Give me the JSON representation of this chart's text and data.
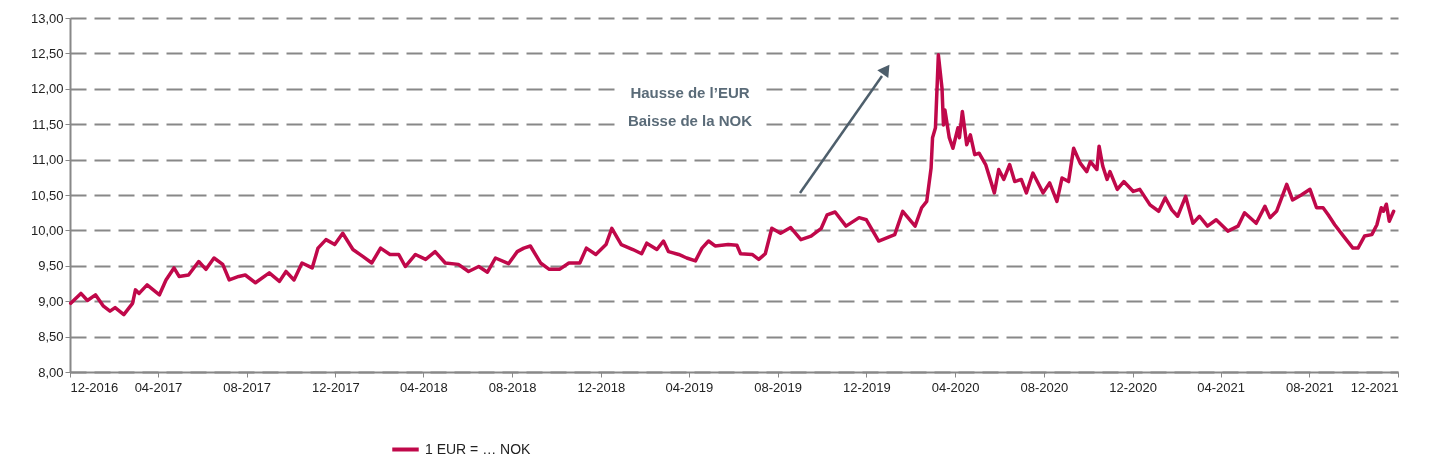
{
  "chart_data": {
    "type": "line",
    "annotations": [
      "Hausse de l’EUR\nBaisse de la NOK"
    ],
    "xlim": [
      "2016-12-01",
      "2021-12-01"
    ],
    "xticks": [
      {
        "value": "2016-12-01",
        "label": "12-2016"
      },
      {
        "value": "2017-04-01",
        "label": "04-2017"
      },
      {
        "value": "2017-08-01",
        "label": "08-2017"
      },
      {
        "value": "2017-12-01",
        "label": "12-2017"
      },
      {
        "value": "2018-04-01",
        "label": "04-2018"
      },
      {
        "value": "2018-08-01",
        "label": "08-2018"
      },
      {
        "value": "2018-12-01",
        "label": "12-2018"
      },
      {
        "value": "2019-04-01",
        "label": "04-2019"
      },
      {
        "value": "2019-08-01",
        "label": "08-2019"
      },
      {
        "value": "2019-12-01",
        "label": "12-2019"
      },
      {
        "value": "2020-04-01",
        "label": "04-2020"
      },
      {
        "value": "2020-08-01",
        "label": "08-2020"
      },
      {
        "value": "2020-12-01",
        "label": "12-2020"
      },
      {
        "value": "2021-04-01",
        "label": "04-2021"
      },
      {
        "value": "2021-08-01",
        "label": "08-2021"
      },
      {
        "value": "2021-12-01",
        "label": "12-2021"
      }
    ],
    "ylim": [
      8,
      13
    ],
    "yticks": [
      {
        "value": 8,
        "label": "8,00"
      },
      {
        "value": 8.5,
        "label": "8,50"
      },
      {
        "value": 9,
        "label": "9,00"
      },
      {
        "value": 9.5,
        "label": "9,50"
      },
      {
        "value": 10,
        "label": "10,00"
      },
      {
        "value": 10.5,
        "label": "10,50"
      },
      {
        "value": 11,
        "label": "11,00"
      },
      {
        "value": 11.5,
        "label": "11,50"
      },
      {
        "value": 12,
        "label": "12,00"
      },
      {
        "value": 12.5,
        "label": "12,50"
      },
      {
        "value": 13,
        "label": "13,00"
      }
    ],
    "grid": "y",
    "legend": "bottom",
    "marker": "none",
    "line_style": "solid",
    "series": [
      {
        "name": "1 EUR = … NOK",
        "color": "#c0084a",
        "x": [
          "2016-12-02",
          "2016-12-16",
          "2016-12-25",
          "2017-01-05",
          "2017-01-16",
          "2017-01-25",
          "2017-02-01",
          "2017-02-13",
          "2017-02-25",
          "2017-03-01",
          "2017-03-06",
          "2017-03-17",
          "2017-04-03",
          "2017-04-12",
          "2017-04-23",
          "2017-04-30",
          "2017-05-13",
          "2017-05-27",
          "2017-06-06",
          "2017-06-17",
          "2017-06-29",
          "2017-07-08",
          "2017-07-21",
          "2017-07-30",
          "2017-08-13",
          "2017-09-01",
          "2017-09-15",
          "2017-09-24",
          "2017-10-05",
          "2017-10-16",
          "2017-10-30",
          "2017-11-07",
          "2017-11-18",
          "2017-11-30",
          "2017-12-11",
          "2017-12-25",
          "2018-01-08",
          "2018-01-20",
          "2018-02-01",
          "2018-02-14",
          "2018-02-26",
          "2018-03-07",
          "2018-03-21",
          "2018-04-04",
          "2018-04-17",
          "2018-05-01",
          "2018-05-19",
          "2018-06-02",
          "2018-06-16",
          "2018-06-28",
          "2018-07-09",
          "2018-07-27",
          "2018-08-08",
          "2018-08-17",
          "2018-08-26",
          "2018-09-09",
          "2018-09-21",
          "2018-10-05",
          "2018-10-18",
          "2018-11-02",
          "2018-11-11",
          "2018-11-24",
          "2018-12-08",
          "2018-12-16",
          "2018-12-29",
          "2019-01-14",
          "2019-01-26",
          "2019-02-02",
          "2019-02-16",
          "2019-02-25",
          "2019-03-04",
          "2019-03-18",
          "2019-03-29",
          "2019-04-10",
          "2019-04-19",
          "2019-04-28",
          "2019-05-07",
          "2019-05-25",
          "2019-06-06",
          "2019-06-11",
          "2019-06-27",
          "2019-07-06",
          "2019-07-15",
          "2019-07-24",
          "2019-08-05",
          "2019-08-19",
          "2019-09-02",
          "2019-09-16",
          "2019-09-30",
          "2019-10-08",
          "2019-10-19",
          "2019-11-03",
          "2019-11-21",
          "2019-12-01",
          "2019-12-18",
          "2020-01-09",
          "2020-01-20",
          "2020-02-06",
          "2020-02-15",
          "2020-02-22",
          "2020-02-28",
          "2020-03-01",
          "2020-03-05",
          "2020-03-09",
          "2020-03-14",
          "2020-03-16",
          "2020-03-18",
          "2020-03-24",
          "2020-03-29",
          "2020-04-05",
          "2020-04-07",
          "2020-04-11",
          "2020-04-17",
          "2020-04-22",
          "2020-04-28",
          "2020-05-04",
          "2020-05-13",
          "2020-05-25",
          "2020-05-31",
          "2020-06-07",
          "2020-06-15",
          "2020-06-22",
          "2020-07-01",
          "2020-07-08",
          "2020-07-17",
          "2020-07-31",
          "2020-08-09",
          "2020-08-19",
          "2020-08-26",
          "2020-09-04",
          "2020-09-11",
          "2020-09-20",
          "2020-09-29",
          "2020-10-04",
          "2020-10-13",
          "2020-10-16",
          "2020-10-21",
          "2020-10-27",
          "2020-10-31",
          "2020-11-10",
          "2020-11-19",
          "2020-12-02",
          "2020-12-11",
          "2020-12-25",
          "2021-01-06",
          "2021-01-15",
          "2021-01-24",
          "2021-02-01",
          "2021-02-12",
          "2021-02-22",
          "2021-03-03",
          "2021-03-14",
          "2021-03-26",
          "2021-04-11",
          "2021-04-25",
          "2021-05-04",
          "2021-05-20",
          "2021-06-01",
          "2021-06-08",
          "2021-06-17",
          "2021-06-24",
          "2021-07-01",
          "2021-07-09",
          "2021-07-21",
          "2021-08-02",
          "2021-08-11",
          "2021-08-20",
          "2021-08-27",
          "2021-09-05",
          "2021-09-17",
          "2021-09-30",
          "2021-10-07",
          "2021-10-16",
          "2021-10-26",
          "2021-11-02",
          "2021-11-08",
          "2021-11-11",
          "2021-11-15",
          "2021-11-19",
          "2021-11-25"
        ],
        "values": [
          8.97,
          9.11,
          9.01,
          9.09,
          8.93,
          8.86,
          8.91,
          8.81,
          8.97,
          9.16,
          9.11,
          9.23,
          9.09,
          9.3,
          9.47,
          9.35,
          9.37,
          9.56,
          9.45,
          9.61,
          9.52,
          9.3,
          9.35,
          9.37,
          9.26,
          9.4,
          9.28,
          9.42,
          9.3,
          9.54,
          9.47,
          9.75,
          9.87,
          9.8,
          9.96,
          9.73,
          9.63,
          9.54,
          9.75,
          9.66,
          9.66,
          9.49,
          9.66,
          9.59,
          9.7,
          9.54,
          9.52,
          9.42,
          9.49,
          9.41,
          9.61,
          9.53,
          9.7,
          9.75,
          9.78,
          9.54,
          9.45,
          9.45,
          9.54,
          9.54,
          9.75,
          9.66,
          9.8,
          10.03,
          9.8,
          9.73,
          9.67,
          9.82,
          9.73,
          9.85,
          9.7,
          9.66,
          9.61,
          9.57,
          9.75,
          9.85,
          9.78,
          9.8,
          9.79,
          9.67,
          9.66,
          9.59,
          9.67,
          10.03,
          9.96,
          10.04,
          9.87,
          9.92,
          10.03,
          10.22,
          10.26,
          10.06,
          10.18,
          10.15,
          9.85,
          9.94,
          10.27,
          10.06,
          10.32,
          10.41,
          10.88,
          11.31,
          11.45,
          12.48,
          12.01,
          11.49,
          11.7,
          11.31,
          11.16,
          11.45,
          11.31,
          11.68,
          11.21,
          11.35,
          11.07,
          11.09,
          10.93,
          10.53,
          10.86,
          10.72,
          10.93,
          10.69,
          10.72,
          10.53,
          10.81,
          10.53,
          10.67,
          10.41,
          10.74,
          10.69,
          11.16,
          10.95,
          10.83,
          10.97,
          10.86,
          11.19,
          10.91,
          10.72,
          10.83,
          10.58,
          10.69,
          10.55,
          10.58,
          10.36,
          10.27,
          10.46,
          10.29,
          10.2,
          10.48,
          10.1,
          10.2,
          10.06,
          10.15,
          9.99,
          10.06,
          10.25,
          10.1,
          10.34,
          10.18,
          10.27,
          10.46,
          10.65,
          10.43,
          10.5,
          10.58,
          10.32,
          10.32,
          10.22,
          10.08,
          9.92,
          9.75,
          9.75,
          9.92,
          9.94,
          10.08,
          10.32,
          10.27,
          10.37,
          10.13,
          10.27
        ]
      }
    ]
  }
}
